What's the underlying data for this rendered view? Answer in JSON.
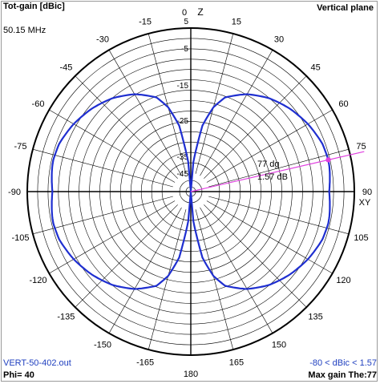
{
  "header": {
    "title": "Tot-gain [dBic]",
    "frequency": "50.15 MHz",
    "plane": "Vertical plane"
  },
  "footer": {
    "filename": "VERT-50-402.out",
    "phi": "Phi= 40",
    "range": "-80 < dBic < 1.57",
    "max_gain": "Max gain The:77"
  },
  "colors": {
    "pattern": "#1f2fd0",
    "marker": "#e040e0",
    "grid": "#000000"
  },
  "chart_data": {
    "type": "polar",
    "angle_labels": [
      "0",
      "15",
      "30",
      "45",
      "60",
      "75",
      "90",
      "105",
      "120",
      "135",
      "150",
      "165",
      "180",
      "-165",
      "-150",
      "-135",
      "-120",
      "-105",
      "-90",
      "-75",
      "-60",
      "-45",
      "-30",
      "-15"
    ],
    "axis_labels": {
      "top": "Z",
      "right": "XY"
    },
    "radial_ticks": [
      "5",
      "-5",
      "-15",
      "-25",
      "-35",
      "-45"
    ],
    "max_gain": {
      "angle_deg": 77,
      "value_dbic": 1.57,
      "angle_label": "77 dg",
      "value_label": "1.57 dB"
    },
    "pattern": {
      "series": "Tot-gain",
      "shape": "figure-eight doughnut",
      "angles_deg": [
        0,
        5,
        10,
        15,
        20,
        30,
        40,
        50,
        60,
        70,
        77,
        80,
        90
      ],
      "gain_dbic": [
        -80,
        -12,
        -4.9,
        -2.6,
        -1.4,
        -0.4,
        0.3,
        0.8,
        1.2,
        1.5,
        1.57,
        1.55,
        1.4
      ]
    }
  }
}
